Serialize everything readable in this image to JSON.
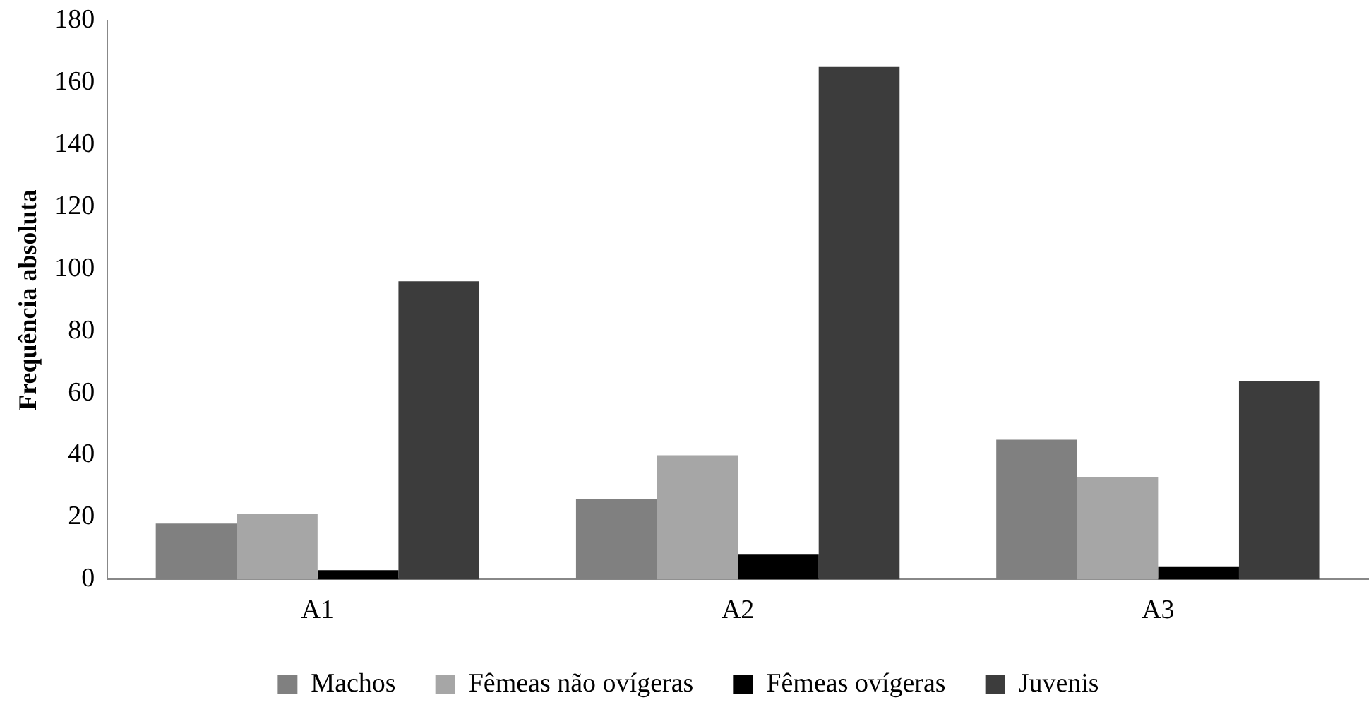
{
  "chart_data": {
    "type": "bar",
    "ylabel": "Frequência absoluta",
    "categories": [
      "A1",
      "A2",
      "A3"
    ],
    "series": [
      {
        "name": "Machos",
        "color": "#808080",
        "values": [
          18,
          26,
          45
        ]
      },
      {
        "name": "Fêmeas não ovígeras",
        "color": "#a6a6a6",
        "values": [
          21,
          40,
          33
        ]
      },
      {
        "name": "Fêmeas ovígeras",
        "color": "#000000",
        "values": [
          3,
          8,
          4
        ]
      },
      {
        "name": "Juvenis",
        "color": "#3c3c3c",
        "values": [
          96,
          165,
          64
        ]
      }
    ],
    "ylim": [
      0,
      180
    ],
    "yticks": [
      0,
      20,
      40,
      60,
      80,
      100,
      120,
      140,
      160,
      180
    ],
    "grid": false,
    "legend": "bottom"
  }
}
